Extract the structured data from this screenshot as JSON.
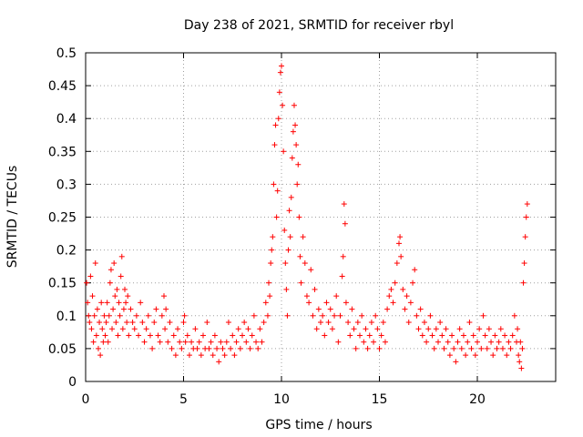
{
  "chart_data": {
    "type": "scatter",
    "title": "Day 238 of 2021, SRMTID for receiver rbyl",
    "xlabel": "GPS time / hours",
    "ylabel": "SRMTID / TECUs",
    "xlim": [
      0,
      24
    ],
    "ylim": [
      0,
      0.5
    ],
    "xticks": [
      0,
      5,
      10,
      15,
      20
    ],
    "xtick_labels": [
      "0",
      "5",
      "10",
      "15",
      "20"
    ],
    "yticks": [
      0,
      0.05,
      0.1,
      0.15,
      0.2,
      0.25,
      0.3,
      0.35,
      0.4,
      0.45,
      0.5
    ],
    "ytick_labels": [
      "0",
      "0.05",
      "0.1",
      "0.15",
      "0.2",
      "0.25",
      "0.3",
      "0.35",
      "0.4",
      "0.45",
      "0.5"
    ],
    "grid": true,
    "marker": "plus",
    "color": "#ff0000",
    "series": [
      {
        "values_xy": [
          [
            0.05,
            0.15
          ],
          [
            0.1,
            0.12
          ],
          [
            0.15,
            0.1
          ],
          [
            0.2,
            0.09
          ],
          [
            0.25,
            0.16
          ],
          [
            0.3,
            0.08
          ],
          [
            0.35,
            0.13
          ],
          [
            0.4,
            0.06
          ],
          [
            0.45,
            0.1
          ],
          [
            0.5,
            0.18
          ],
          [
            0.55,
            0.07
          ],
          [
            0.6,
            0.11
          ],
          [
            0.65,
            0.05
          ],
          [
            0.7,
            0.09
          ],
          [
            0.75,
            0.04
          ],
          [
            0.8,
            0.12
          ],
          [
            0.85,
            0.08
          ],
          [
            0.9,
            0.06
          ],
          [
            0.95,
            0.1
          ],
          [
            1.0,
            0.07
          ],
          [
            1.05,
            0.09
          ],
          [
            1.1,
            0.12
          ],
          [
            1.15,
            0.06
          ],
          [
            1.2,
            0.1
          ],
          [
            1.25,
            0.15
          ],
          [
            1.3,
            0.17
          ],
          [
            1.35,
            0.08
          ],
          [
            1.4,
            0.11
          ],
          [
            1.45,
            0.18
          ],
          [
            1.5,
            0.13
          ],
          [
            1.55,
            0.09
          ],
          [
            1.6,
            0.14
          ],
          [
            1.65,
            0.07
          ],
          [
            1.7,
            0.12
          ],
          [
            1.75,
            0.1
          ],
          [
            1.8,
            0.16
          ],
          [
            1.85,
            0.19
          ],
          [
            1.9,
            0.08
          ],
          [
            1.95,
            0.11
          ],
          [
            2.0,
            0.14
          ],
          [
            2.05,
            0.12
          ],
          [
            2.1,
            0.09
          ],
          [
            2.15,
            0.13
          ],
          [
            2.2,
            0.07
          ],
          [
            2.3,
            0.11
          ],
          [
            2.4,
            0.09
          ],
          [
            2.5,
            0.08
          ],
          [
            2.6,
            0.1
          ],
          [
            2.7,
            0.07
          ],
          [
            2.8,
            0.12
          ],
          [
            2.9,
            0.09
          ],
          [
            3.0,
            0.06
          ],
          [
            3.1,
            0.08
          ],
          [
            3.2,
            0.1
          ],
          [
            3.3,
            0.07
          ],
          [
            3.4,
            0.05
          ],
          [
            3.5,
            0.09
          ],
          [
            3.6,
            0.11
          ],
          [
            3.7,
            0.07
          ],
          [
            3.8,
            0.06
          ],
          [
            3.9,
            0.1
          ],
          [
            4.0,
            0.13
          ],
          [
            4.05,
            0.08
          ],
          [
            4.1,
            0.11
          ],
          [
            4.2,
            0.06
          ],
          [
            4.3,
            0.09
          ],
          [
            4.4,
            0.05
          ],
          [
            4.5,
            0.07
          ],
          [
            4.6,
            0.04
          ],
          [
            4.7,
            0.08
          ],
          [
            4.8,
            0.06
          ],
          [
            4.9,
            0.05
          ],
          [
            5.0,
            0.09
          ],
          [
            5.05,
            0.1
          ],
          [
            5.1,
            0.06
          ],
          [
            5.2,
            0.07
          ],
          [
            5.3,
            0.04
          ],
          [
            5.4,
            0.06
          ],
          [
            5.5,
            0.05
          ],
          [
            5.6,
            0.08
          ],
          [
            5.7,
            0.05
          ],
          [
            5.8,
            0.06
          ],
          [
            5.9,
            0.04
          ],
          [
            6.0,
            0.07
          ],
          [
            6.1,
            0.05
          ],
          [
            6.2,
            0.09
          ],
          [
            6.3,
            0.05
          ],
          [
            6.4,
            0.06
          ],
          [
            6.5,
            0.04
          ],
          [
            6.6,
            0.07
          ],
          [
            6.7,
            0.05
          ],
          [
            6.8,
            0.03
          ],
          [
            6.9,
            0.06
          ],
          [
            7.0,
            0.05
          ],
          [
            7.1,
            0.04
          ],
          [
            7.2,
            0.06
          ],
          [
            7.3,
            0.09
          ],
          [
            7.4,
            0.05
          ],
          [
            7.5,
            0.07
          ],
          [
            7.6,
            0.04
          ],
          [
            7.7,
            0.06
          ],
          [
            7.8,
            0.08
          ],
          [
            7.9,
            0.05
          ],
          [
            8.0,
            0.07
          ],
          [
            8.1,
            0.09
          ],
          [
            8.2,
            0.06
          ],
          [
            8.3,
            0.08
          ],
          [
            8.4,
            0.05
          ],
          [
            8.5,
            0.07
          ],
          [
            8.6,
            0.1
          ],
          [
            8.7,
            0.06
          ],
          [
            8.8,
            0.05
          ],
          [
            8.9,
            0.08
          ],
          [
            9.0,
            0.06
          ],
          [
            9.1,
            0.09
          ],
          [
            9.2,
            0.12
          ],
          [
            9.3,
            0.1
          ],
          [
            9.35,
            0.15
          ],
          [
            9.4,
            0.13
          ],
          [
            9.45,
            0.18
          ],
          [
            9.5,
            0.2
          ],
          [
            9.55,
            0.22
          ],
          [
            9.6,
            0.3
          ],
          [
            9.65,
            0.36
          ],
          [
            9.7,
            0.39
          ],
          [
            9.75,
            0.25
          ],
          [
            9.8,
            0.29
          ],
          [
            9.85,
            0.4
          ],
          [
            9.9,
            0.44
          ],
          [
            9.95,
            0.47
          ],
          [
            10.0,
            0.48
          ],
          [
            10.05,
            0.42
          ],
          [
            10.1,
            0.35
          ],
          [
            10.15,
            0.23
          ],
          [
            10.2,
            0.18
          ],
          [
            10.25,
            0.14
          ],
          [
            10.3,
            0.1
          ],
          [
            10.35,
            0.2
          ],
          [
            10.4,
            0.26
          ],
          [
            10.45,
            0.22
          ],
          [
            10.5,
            0.28
          ],
          [
            10.55,
            0.34
          ],
          [
            10.6,
            0.38
          ],
          [
            10.65,
            0.42
          ],
          [
            10.7,
            0.39
          ],
          [
            10.75,
            0.36
          ],
          [
            10.8,
            0.3
          ],
          [
            10.85,
            0.33
          ],
          [
            10.9,
            0.25
          ],
          [
            10.95,
            0.19
          ],
          [
            11.0,
            0.15
          ],
          [
            11.1,
            0.22
          ],
          [
            11.2,
            0.18
          ],
          [
            11.3,
            0.13
          ],
          [
            11.4,
            0.12
          ],
          [
            11.5,
            0.17
          ],
          [
            11.6,
            0.1
          ],
          [
            11.7,
            0.14
          ],
          [
            11.8,
            0.08
          ],
          [
            11.9,
            0.11
          ],
          [
            12.0,
            0.09
          ],
          [
            12.1,
            0.1
          ],
          [
            12.2,
            0.07
          ],
          [
            12.3,
            0.12
          ],
          [
            12.4,
            0.09
          ],
          [
            12.5,
            0.11
          ],
          [
            12.6,
            0.08
          ],
          [
            12.7,
            0.1
          ],
          [
            12.8,
            0.13
          ],
          [
            12.9,
            0.06
          ],
          [
            13.0,
            0.1
          ],
          [
            13.1,
            0.16
          ],
          [
            13.15,
            0.19
          ],
          [
            13.2,
            0.27
          ],
          [
            13.25,
            0.24
          ],
          [
            13.3,
            0.12
          ],
          [
            13.4,
            0.09
          ],
          [
            13.5,
            0.07
          ],
          [
            13.6,
            0.11
          ],
          [
            13.7,
            0.08
          ],
          [
            13.8,
            0.05
          ],
          [
            13.9,
            0.09
          ],
          [
            14.0,
            0.07
          ],
          [
            14.1,
            0.1
          ],
          [
            14.2,
            0.06
          ],
          [
            14.3,
            0.08
          ],
          [
            14.4,
            0.05
          ],
          [
            14.5,
            0.07
          ],
          [
            14.6,
            0.09
          ],
          [
            14.7,
            0.06
          ],
          [
            14.8,
            0.1
          ],
          [
            14.9,
            0.08
          ],
          [
            15.0,
            0.05
          ],
          [
            15.1,
            0.07
          ],
          [
            15.2,
            0.09
          ],
          [
            15.3,
            0.06
          ],
          [
            15.4,
            0.11
          ],
          [
            15.5,
            0.13
          ],
          [
            15.6,
            0.14
          ],
          [
            15.7,
            0.12
          ],
          [
            15.8,
            0.15
          ],
          [
            15.9,
            0.18
          ],
          [
            16.0,
            0.21
          ],
          [
            16.05,
            0.22
          ],
          [
            16.1,
            0.19
          ],
          [
            16.2,
            0.14
          ],
          [
            16.3,
            0.11
          ],
          [
            16.4,
            0.13
          ],
          [
            16.5,
            0.09
          ],
          [
            16.6,
            0.12
          ],
          [
            16.7,
            0.15
          ],
          [
            16.8,
            0.17
          ],
          [
            16.9,
            0.1
          ],
          [
            17.0,
            0.08
          ],
          [
            17.1,
            0.11
          ],
          [
            17.2,
            0.07
          ],
          [
            17.3,
            0.09
          ],
          [
            17.4,
            0.06
          ],
          [
            17.5,
            0.08
          ],
          [
            17.6,
            0.1
          ],
          [
            17.7,
            0.07
          ],
          [
            17.8,
            0.05
          ],
          [
            17.9,
            0.08
          ],
          [
            18.0,
            0.06
          ],
          [
            18.1,
            0.09
          ],
          [
            18.2,
            0.07
          ],
          [
            18.3,
            0.05
          ],
          [
            18.4,
            0.08
          ],
          [
            18.5,
            0.06
          ],
          [
            18.6,
            0.04
          ],
          [
            18.7,
            0.07
          ],
          [
            18.8,
            0.05
          ],
          [
            18.9,
            0.03
          ],
          [
            19.0,
            0.06
          ],
          [
            19.1,
            0.08
          ],
          [
            19.2,
            0.05
          ],
          [
            19.3,
            0.07
          ],
          [
            19.4,
            0.04
          ],
          [
            19.5,
            0.06
          ],
          [
            19.6,
            0.09
          ],
          [
            19.7,
            0.05
          ],
          [
            19.8,
            0.07
          ],
          [
            19.9,
            0.04
          ],
          [
            20.0,
            0.06
          ],
          [
            20.1,
            0.08
          ],
          [
            20.2,
            0.05
          ],
          [
            20.3,
            0.1
          ],
          [
            20.4,
            0.07
          ],
          [
            20.5,
            0.05
          ],
          [
            20.6,
            0.08
          ],
          [
            20.7,
            0.06
          ],
          [
            20.8,
            0.04
          ],
          [
            20.9,
            0.07
          ],
          [
            21.0,
            0.05
          ],
          [
            21.1,
            0.06
          ],
          [
            21.2,
            0.08
          ],
          [
            21.3,
            0.05
          ],
          [
            21.4,
            0.07
          ],
          [
            21.5,
            0.04
          ],
          [
            21.6,
            0.06
          ],
          [
            21.7,
            0.05
          ],
          [
            21.8,
            0.07
          ],
          [
            21.9,
            0.1
          ],
          [
            22.0,
            0.06
          ],
          [
            22.05,
            0.08
          ],
          [
            22.1,
            0.04
          ],
          [
            22.15,
            0.03
          ],
          [
            22.2,
            0.06
          ],
          [
            22.25,
            0.02
          ],
          [
            22.3,
            0.05
          ],
          [
            22.35,
            0.15
          ],
          [
            22.4,
            0.18
          ],
          [
            22.45,
            0.22
          ],
          [
            22.5,
            0.25
          ],
          [
            22.55,
            0.27
          ]
        ]
      }
    ]
  }
}
